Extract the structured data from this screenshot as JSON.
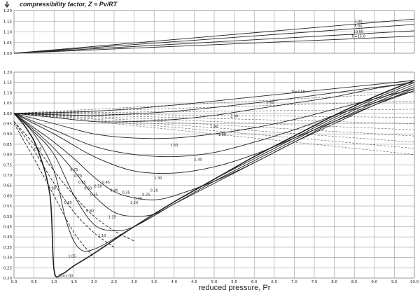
{
  "page": {
    "title": "compressibility factor, Z = Pv/RT",
    "xlabel": "reduced pressure, Pr"
  },
  "colors": {
    "background": "#ffffff",
    "grid": "#9a9a9a",
    "curve": "#222222",
    "ink": "#222222"
  },
  "chart_data": [
    {
      "type": "line",
      "panel": "top",
      "title": "compressibility factor, Z = Pv/RT",
      "xlim": [
        0.0,
        10.0
      ],
      "ylim": [
        1.0,
        1.2
      ],
      "x_ticks": [
        "0.0",
        "0.5",
        "1.0",
        "1.5",
        "2.0",
        "2.5",
        "3.0",
        "3.5",
        "4.0",
        "4.5",
        "5.0",
        "5.5",
        "6.0",
        "6.5",
        "7.0",
        "7.5",
        "8.0",
        "8.5",
        "9.0",
        "9.5",
        "10.0"
      ],
      "y_ticks": [
        "1.00",
        "1.05",
        "1.10",
        "1.15",
        "1.20"
      ],
      "grid": true,
      "series": [
        {
          "name": "3.00",
          "x": [
            0,
            10
          ],
          "y": [
            1.0,
            1.16
          ]
        },
        {
          "name": "5.00",
          "x": [
            0,
            10
          ],
          "y": [
            1.0,
            1.135
          ]
        },
        {
          "name": "10.00",
          "x": [
            0,
            10
          ],
          "y": [
            1.0,
            1.105
          ]
        },
        {
          "name": "Tr=15.0",
          "x": [
            0,
            10
          ],
          "y": [
            1.0,
            1.08
          ]
        }
      ]
    },
    {
      "type": "line",
      "panel": "bottom",
      "xlabel": "reduced pressure, Pr",
      "xlim": [
        0.0,
        10.0
      ],
      "ylim": [
        0.2,
        1.2
      ],
      "x_ticks": [
        "0.0",
        "0.5",
        "1.0",
        "1.5",
        "2.0",
        "2.5",
        "3.0",
        "3.5",
        "4.0",
        "4.5",
        "5.0",
        "5.5",
        "6.0",
        "6.5",
        "7.0",
        "7.5",
        "8.0",
        "8.5",
        "9.0",
        "9.5",
        "10.0"
      ],
      "y_ticks": [
        "0.20",
        "0.25",
        "0.30",
        "0.35",
        "0.40",
        "0.45",
        "0.50",
        "0.55",
        "0.60",
        "0.65",
        "0.70",
        "0.75",
        "0.80",
        "0.85",
        "0.90",
        "0.95",
        "1.00",
        "1.05",
        "1.10",
        "1.15",
        "1.20"
      ],
      "grid": true,
      "series": [
        {
          "name": "Tr=1.00",
          "x": [
            0,
            0.3,
            0.6,
            0.9,
            1.0,
            1.2,
            1.5,
            2,
            3,
            4,
            5,
            6,
            7,
            8,
            9,
            10
          ],
          "y": [
            1.0,
            0.93,
            0.82,
            0.6,
            0.24,
            0.22,
            0.26,
            0.32,
            0.45,
            0.57,
            0.68,
            0.79,
            0.89,
            0.99,
            1.08,
            1.16
          ]
        },
        {
          "name": "1.05",
          "x": [
            0,
            0.5,
            1.0,
            1.3,
            1.6,
            2,
            3,
            4,
            5,
            6,
            7,
            8,
            9,
            10
          ],
          "y": [
            1.0,
            0.9,
            0.72,
            0.48,
            0.35,
            0.34,
            0.45,
            0.57,
            0.68,
            0.78,
            0.88,
            0.98,
            1.07,
            1.15
          ]
        },
        {
          "name": "1.10",
          "x": [
            0,
            0.5,
            1.0,
            1.5,
            2.0,
            2.5,
            3,
            4,
            5,
            6,
            7,
            8,
            9,
            10
          ],
          "y": [
            1.0,
            0.91,
            0.8,
            0.6,
            0.46,
            0.43,
            0.45,
            0.56,
            0.67,
            0.77,
            0.87,
            0.97,
            1.06,
            1.14
          ]
        },
        {
          "name": "1.15",
          "x": [
            0,
            0.5,
            1.0,
            1.5,
            2.0,
            2.5,
            3,
            3.5,
            4,
            5,
            6,
            7,
            8,
            9,
            10
          ],
          "y": [
            1.0,
            0.92,
            0.83,
            0.72,
            0.6,
            0.52,
            0.5,
            0.51,
            0.56,
            0.66,
            0.76,
            0.86,
            0.96,
            1.05,
            1.13
          ]
        },
        {
          "name": "1.20",
          "x": [
            0,
            0.5,
            1,
            1.5,
            2,
            2.5,
            3,
            3.5,
            4,
            5,
            6,
            7,
            8,
            9,
            10
          ],
          "y": [
            1.0,
            0.93,
            0.86,
            0.78,
            0.69,
            0.62,
            0.59,
            0.58,
            0.6,
            0.67,
            0.76,
            0.86,
            0.95,
            1.04,
            1.12
          ]
        },
        {
          "name": "1.30",
          "x": [
            0,
            1,
            2,
            3,
            4,
            5,
            6,
            7,
            8,
            9,
            10
          ],
          "y": [
            1.0,
            0.9,
            0.79,
            0.72,
            0.71,
            0.74,
            0.8,
            0.88,
            0.96,
            1.04,
            1.11
          ]
        },
        {
          "name": "1.40",
          "x": [
            0,
            1,
            2,
            3,
            4,
            5,
            6,
            7,
            8,
            9,
            10
          ],
          "y": [
            1.0,
            0.92,
            0.84,
            0.8,
            0.79,
            0.81,
            0.86,
            0.92,
            0.99,
            1.05,
            1.11
          ]
        },
        {
          "name": "1.60",
          "x": [
            0,
            1,
            2,
            3,
            4,
            5,
            6,
            7,
            8,
            9,
            10
          ],
          "y": [
            1.0,
            0.95,
            0.9,
            0.88,
            0.88,
            0.9,
            0.93,
            0.97,
            1.02,
            1.07,
            1.12
          ]
        },
        {
          "name": "2.00",
          "x": [
            0,
            1,
            2,
            3,
            4,
            5,
            6,
            7,
            8,
            9,
            10
          ],
          "y": [
            1.0,
            0.98,
            0.96,
            0.96,
            0.97,
            0.99,
            1.02,
            1.05,
            1.08,
            1.12,
            1.15
          ]
        },
        {
          "name": "2.50",
          "x": [
            0,
            2,
            4,
            6,
            8,
            10
          ],
          "y": [
            1.0,
            0.99,
            1.01,
            1.05,
            1.1,
            1.15
          ]
        },
        {
          "name": "Tr=3.50",
          "x": [
            0,
            2,
            4,
            6,
            8,
            10
          ],
          "y": [
            1.0,
            1.01,
            1.04,
            1.08,
            1.12,
            1.16
          ]
        },
        {
          "name": "0.90",
          "x": [
            0,
            0.5,
            1.0,
            1.5,
            2.0
          ],
          "y": [
            0.95,
            0.78,
            0.6,
            0.42,
            0.3
          ]
        },
        {
          "name": "0.85",
          "x": [
            0,
            0.5,
            1.0,
            1.5,
            2.0,
            2.5
          ],
          "y": [
            0.96,
            0.82,
            0.66,
            0.52,
            0.42,
            0.35
          ]
        },
        {
          "name": "0.80",
          "x": [
            0,
            0.5,
            1.0,
            1.5,
            2.0,
            2.5,
            3.0
          ],
          "y": [
            0.96,
            0.85,
            0.72,
            0.6,
            0.5,
            0.43,
            0.38
          ]
        }
      ],
      "labels": [
        "Tr=3.50",
        "2.50",
        "2.00",
        "1.80",
        "1.60",
        "1.50",
        "1.40",
        "1.30",
        "1.20",
        "1.15",
        "1.10",
        "1.05",
        "Tr=1.00",
        "0.95",
        "0.90",
        "0.85",
        "0.80",
        "0.75",
        "0.70",
        "0.65",
        "0.60",
        "0.55",
        "0.50",
        "0.45",
        "0.40",
        "0.35",
        "0.30",
        "0.25",
        "0.20"
      ]
    }
  ]
}
